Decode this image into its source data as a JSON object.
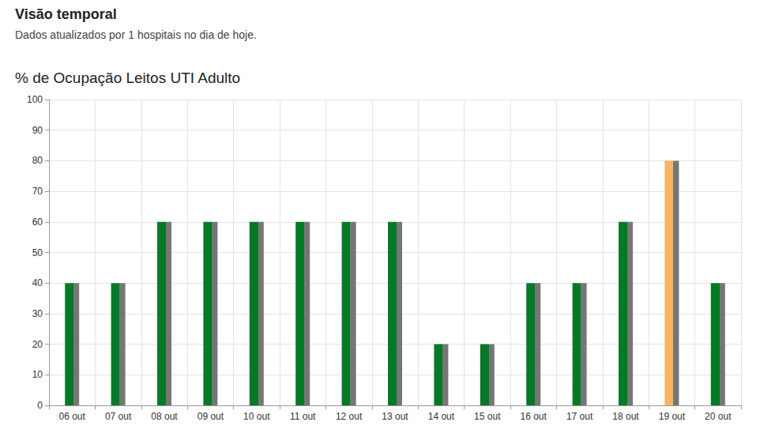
{
  "header": {
    "title": "Visão temporal",
    "subtitle": "Dados atualizados por 1 hospitais no dia de hoje."
  },
  "chart_data": {
    "type": "bar",
    "title": "% de Ocupação Leitos UTI Adulto",
    "categories": [
      "06 out",
      "07 out",
      "08 out",
      "09 out",
      "10 out",
      "11 out",
      "12 out",
      "13 out",
      "14 out",
      "15 out",
      "16 out",
      "17 out",
      "18 out",
      "19 out",
      "20 out"
    ],
    "values": [
      40,
      40,
      60,
      60,
      60,
      60,
      60,
      60,
      20,
      20,
      40,
      40,
      60,
      80,
      40
    ],
    "colors": [
      "#047a26",
      "#047a26",
      "#047a26",
      "#047a26",
      "#047a26",
      "#047a26",
      "#047a26",
      "#047a26",
      "#047a26",
      "#047a26",
      "#047a26",
      "#047a26",
      "#047a26",
      "#f7b462",
      "#047a26"
    ],
    "ylim": [
      0,
      100
    ],
    "yticks": [
      0,
      10,
      20,
      30,
      40,
      50,
      60,
      70,
      80,
      90,
      100
    ],
    "grid": true
  }
}
